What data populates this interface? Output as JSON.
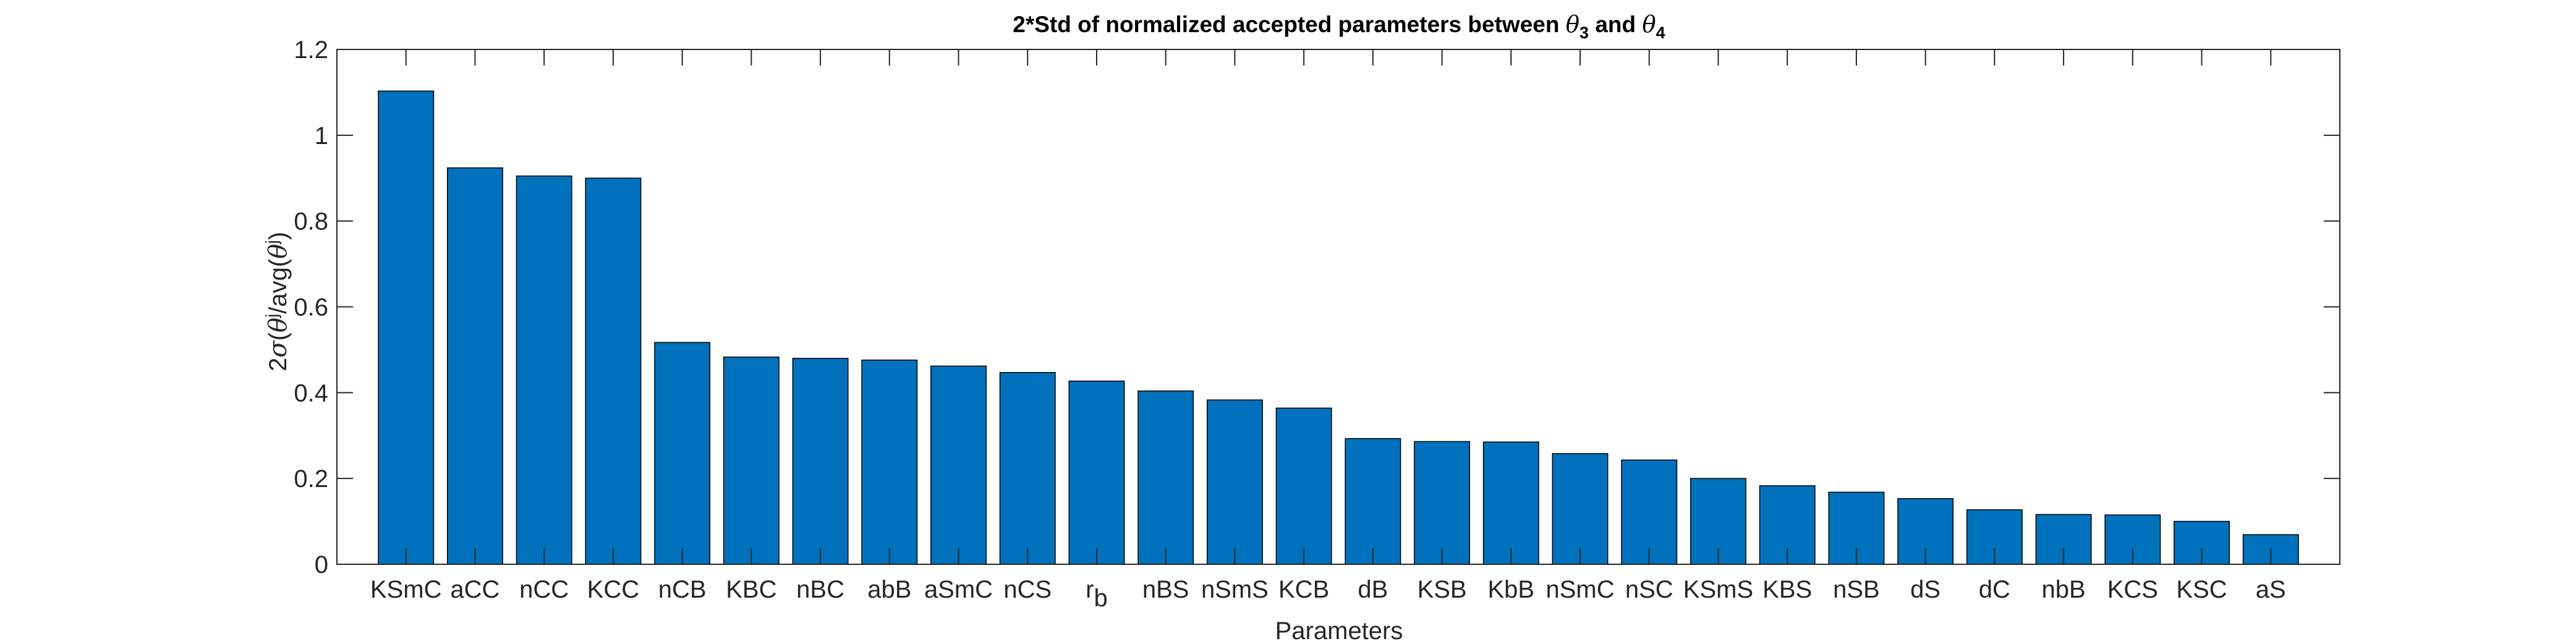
{
  "chart_data": {
    "type": "bar",
    "title": "2*Std of normalized accepted parameters between θ3 and θ4",
    "title_parts": {
      "prefix": "2*Std of normalized accepted parameters between ",
      "theta": "θ",
      "sub_a": "3",
      "conj": " and ",
      "sub_b": "4"
    },
    "xlabel": "Parameters",
    "ylabel": "2σ(θʲ)/avg(θʲ)",
    "ylabel_parts": {
      "a": "2",
      "sigma": "σ",
      "paren_open": "(",
      "theta": "θ",
      "sup": "j",
      "mid": "/avg(",
      "close": ")"
    },
    "ylim": [
      0,
      1.2
    ],
    "yticks": [
      "0",
      "0.2",
      "0.4",
      "0.6",
      "0.8",
      "1",
      "1.2"
    ],
    "categories": [
      "KSmC",
      "aCC",
      "nCC",
      "KCC",
      "nCB",
      "KBC",
      "nBC",
      "abB",
      "aSmC",
      "nCS",
      "r_b",
      "nBS",
      "nSmS",
      "KCB",
      "dB",
      "KSB",
      "KbB",
      "nSmC",
      "nSC",
      "KSmS",
      "KBS",
      "nSB",
      "dS",
      "dC",
      "nbB",
      "KCS",
      "KSC",
      "aS"
    ],
    "rb_label": {
      "base": "r",
      "sub": "b"
    },
    "values": [
      1.103,
      0.924,
      0.905,
      0.9,
      0.517,
      0.483,
      0.48,
      0.476,
      0.462,
      0.447,
      0.427,
      0.404,
      0.383,
      0.364,
      0.293,
      0.286,
      0.285,
      0.258,
      0.243,
      0.2,
      0.183,
      0.168,
      0.153,
      0.127,
      0.116,
      0.115,
      0.1,
      0.069
    ],
    "bar_color": "#0072BD",
    "grid": false,
    "legend": "none"
  }
}
